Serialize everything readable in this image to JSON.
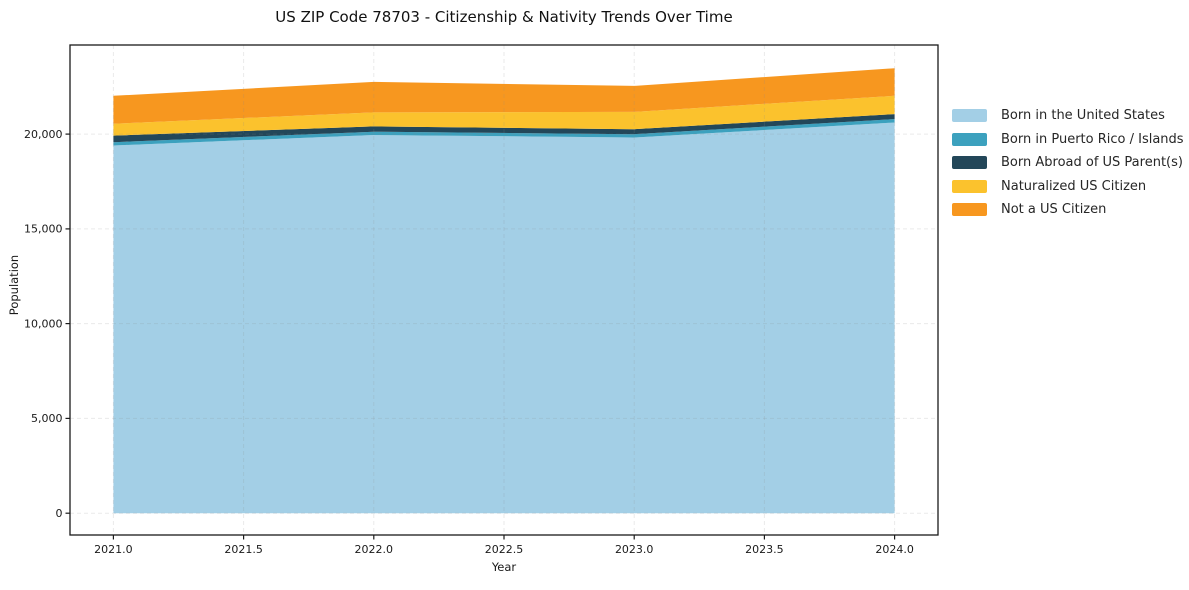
{
  "chart_data": {
    "type": "area",
    "stacked": true,
    "title": "US ZIP Code 78703 - Citizenship & Nativity Trends Over Time",
    "xlabel": "Year",
    "ylabel": "Population",
    "x": [
      2021,
      2022,
      2023,
      2024
    ],
    "series": [
      {
        "name": "Born in the United States",
        "color": "#a3cfe6",
        "values": [
          19400,
          19950,
          19820,
          20610
        ]
      },
      {
        "name": "Born in Puerto Rico / Islands",
        "color": "#3ca1be",
        "values": [
          170,
          175,
          175,
          180
        ]
      },
      {
        "name": "Born Abroad of US Parent(s)",
        "color": "#234759",
        "values": [
          350,
          280,
          265,
          265
        ]
      },
      {
        "name": "Naturalized US Citizen",
        "color": "#fbc22d",
        "values": [
          630,
          740,
          910,
          965
        ]
      },
      {
        "name": "Not a US Citizen",
        "color": "#f7971f",
        "values": [
          1470,
          1610,
          1370,
          1455
        ]
      }
    ],
    "totals": [
      22020,
      22755,
      22540,
      23475
    ],
    "x_ticks": {
      "values": [
        2021.0,
        2021.5,
        2022.0,
        2022.5,
        2023.0,
        2023.5,
        2024.0
      ],
      "labels": [
        "2021.0",
        "2021.5",
        "2022.0",
        "2022.5",
        "2023.0",
        "2023.5",
        "2024.0"
      ]
    },
    "y_ticks": {
      "values": [
        0,
        5000,
        10000,
        15000,
        20000
      ],
      "labels": [
        "0",
        "5,000",
        "10,000",
        "15,000",
        "20,000"
      ]
    },
    "xlim": [
      2020.8333,
      2024.1667
    ],
    "ylim": [
      -1150,
      24700
    ],
    "grid": true,
    "legend_position": "right-outside",
    "colors": {
      "spine": "#1a1a1a",
      "grid": "#8a8a8a",
      "text": "#1a1a1a"
    }
  }
}
